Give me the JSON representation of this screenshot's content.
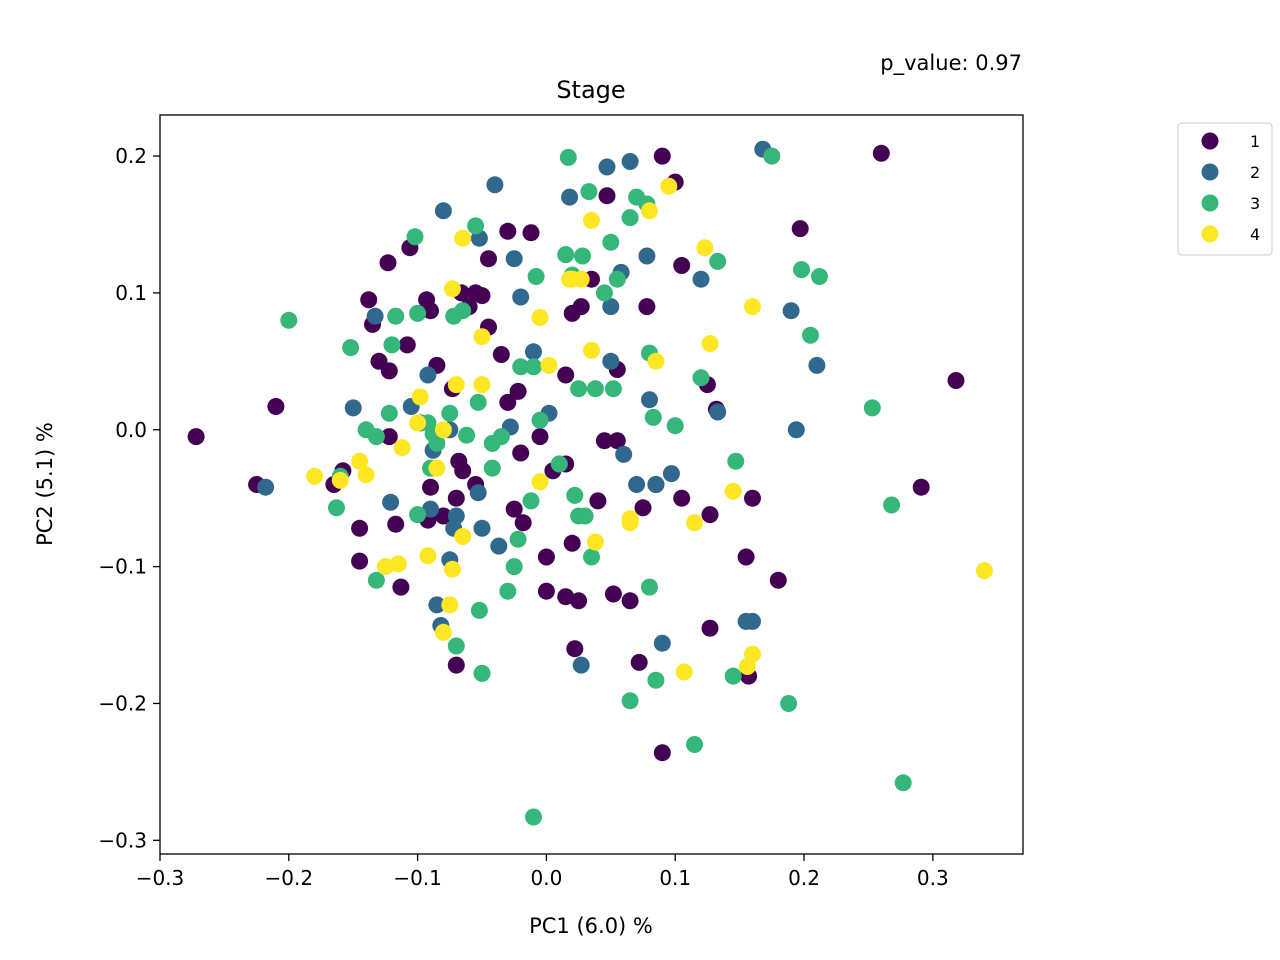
{
  "chart_data": {
    "type": "scatter",
    "title": "Stage",
    "annotation": "p_value: 0.97",
    "xlabel": "PC1 (6.0) %",
    "ylabel": "PC2 (5.1) %",
    "xlim": [
      -0.3,
      0.37
    ],
    "ylim": [
      -0.31,
      0.23
    ],
    "xticks": [
      -0.3,
      -0.2,
      -0.1,
      0.0,
      0.1,
      0.2,
      0.3
    ],
    "xtick_labels": [
      "−0.3",
      "−0.2",
      "−0.1",
      "0.0",
      "0.1",
      "0.2",
      "0.3"
    ],
    "yticks": [
      0.2,
      0.1,
      0.0,
      -0.1,
      -0.2,
      -0.3
    ],
    "ytick_labels": [
      "0.2",
      "0.1",
      "0.0",
      "−0.1",
      "−0.2",
      "−0.3"
    ],
    "grid": false,
    "legend_position": "outside-top-right",
    "series": [
      {
        "name": "1",
        "color": "#440154",
        "points": [
          [
            -0.272,
            -0.005
          ],
          [
            -0.225,
            -0.04
          ],
          [
            -0.21,
            0.017
          ],
          [
            -0.165,
            -0.04
          ],
          [
            -0.158,
            -0.03
          ],
          [
            -0.145,
            -0.072
          ],
          [
            -0.145,
            -0.096
          ],
          [
            -0.138,
            0.095
          ],
          [
            -0.135,
            0.077
          ],
          [
            -0.13,
            0.05
          ],
          [
            -0.123,
            0.122
          ],
          [
            -0.122,
            0.043
          ],
          [
            -0.122,
            -0.005
          ],
          [
            -0.117,
            -0.069
          ],
          [
            -0.113,
            -0.115
          ],
          [
            -0.108,
            0.062
          ],
          [
            -0.106,
            0.133
          ],
          [
            -0.093,
            0.095
          ],
          [
            -0.09,
            0.087
          ],
          [
            -0.09,
            -0.042
          ],
          [
            -0.092,
            -0.066
          ],
          [
            -0.085,
            0.047
          ],
          [
            -0.08,
            -0.063
          ],
          [
            -0.073,
            0.03
          ],
          [
            -0.07,
            -0.05
          ],
          [
            -0.07,
            -0.172
          ],
          [
            -0.066,
            0.1
          ],
          [
            -0.068,
            -0.023
          ],
          [
            -0.06,
            0.09
          ],
          [
            -0.065,
            -0.03
          ],
          [
            -0.055,
            0.1
          ],
          [
            -0.05,
            0.098
          ],
          [
            -0.045,
            0.125
          ],
          [
            -0.045,
            0.075
          ],
          [
            -0.035,
            0.055
          ],
          [
            -0.03,
            0.02
          ],
          [
            -0.03,
            0.145
          ],
          [
            -0.025,
            -0.058
          ],
          [
            -0.022,
            0.028
          ],
          [
            -0.02,
            -0.017
          ],
          [
            -0.018,
            -0.068
          ],
          [
            -0.012,
            0.144
          ],
          [
            -0.005,
            -0.005
          ],
          [
            0.0,
            -0.093
          ],
          [
            0.0,
            -0.118
          ],
          [
            0.015,
            -0.122
          ],
          [
            0.015,
            0.04
          ],
          [
            0.015,
            -0.025
          ],
          [
            0.02,
            0.085
          ],
          [
            0.02,
            -0.083
          ],
          [
            0.022,
            -0.16
          ],
          [
            0.025,
            -0.125
          ],
          [
            0.027,
            0.09
          ],
          [
            0.035,
            0.11
          ],
          [
            0.04,
            -0.052
          ],
          [
            0.045,
            -0.008
          ],
          [
            0.047,
            0.171
          ],
          [
            0.052,
            -0.12
          ],
          [
            0.055,
            0.044
          ],
          [
            0.055,
            -0.008
          ],
          [
            0.065,
            -0.125
          ],
          [
            0.072,
            -0.17
          ],
          [
            0.075,
            -0.057
          ],
          [
            0.078,
            0.09
          ],
          [
            0.085,
            -0.04
          ],
          [
            0.09,
            0.2
          ],
          [
            0.09,
            -0.236
          ],
          [
            0.1,
            0.181
          ],
          [
            0.105,
            -0.05
          ],
          [
            0.105,
            0.12
          ],
          [
            0.125,
            0.033
          ],
          [
            0.127,
            -0.145
          ],
          [
            0.127,
            -0.062
          ],
          [
            0.132,
            0.015
          ],
          [
            0.155,
            -0.093
          ],
          [
            0.157,
            -0.18
          ],
          [
            0.16,
            -0.05
          ],
          [
            0.18,
            -0.11
          ],
          [
            0.197,
            0.147
          ],
          [
            0.26,
            0.202
          ],
          [
            0.291,
            -0.042
          ],
          [
            0.318,
            0.036
          ],
          [
            -0.055,
            -0.04
          ],
          [
            0.005,
            -0.03
          ]
        ]
      },
      {
        "name": "2",
        "color": "#31688e",
        "points": [
          [
            -0.218,
            -0.042
          ],
          [
            -0.15,
            0.016
          ],
          [
            -0.133,
            0.083
          ],
          [
            -0.121,
            -0.053
          ],
          [
            -0.105,
            0.017
          ],
          [
            -0.098,
            0.005
          ],
          [
            -0.092,
            0.04
          ],
          [
            -0.088,
            -0.015
          ],
          [
            -0.085,
            -0.128
          ],
          [
            -0.082,
            -0.143
          ],
          [
            -0.08,
            0.16
          ],
          [
            -0.072,
            -0.072
          ],
          [
            -0.07,
            -0.063
          ],
          [
            -0.075,
            -0.095
          ],
          [
            -0.052,
            0.14
          ],
          [
            -0.053,
            -0.046
          ],
          [
            -0.05,
            -0.072
          ],
          [
            -0.04,
            0.179
          ],
          [
            -0.037,
            -0.085
          ],
          [
            -0.028,
            0.002
          ],
          [
            -0.02,
            0.097
          ],
          [
            -0.01,
            0.057
          ],
          [
            0.01,
            -0.025
          ],
          [
            0.018,
            0.17
          ],
          [
            0.027,
            -0.172
          ],
          [
            0.05,
            0.05
          ],
          [
            0.047,
            0.192
          ],
          [
            0.058,
            0.115
          ],
          [
            0.05,
            0.09
          ],
          [
            0.06,
            -0.018
          ],
          [
            0.065,
            0.196
          ],
          [
            0.07,
            -0.04
          ],
          [
            0.078,
            0.127
          ],
          [
            0.08,
            0.022
          ],
          [
            0.085,
            -0.04
          ],
          [
            0.09,
            -0.156
          ],
          [
            0.097,
            -0.032
          ],
          [
            0.12,
            0.11
          ],
          [
            0.133,
            0.013
          ],
          [
            0.155,
            -0.14
          ],
          [
            0.16,
            -0.14
          ],
          [
            0.168,
            0.205
          ],
          [
            0.19,
            0.087
          ],
          [
            0.194,
            0.0
          ],
          [
            0.21,
            0.047
          ],
          [
            -0.075,
            0.0
          ],
          [
            -0.09,
            -0.058
          ],
          [
            0.002,
            0.012
          ],
          [
            -0.025,
            0.125
          ]
        ]
      },
      {
        "name": "3",
        "color": "#35b779",
        "points": [
          [
            -0.2,
            0.08
          ],
          [
            -0.16,
            -0.034
          ],
          [
            -0.163,
            -0.057
          ],
          [
            -0.152,
            0.06
          ],
          [
            -0.14,
            0.0
          ],
          [
            -0.132,
            -0.005
          ],
          [
            -0.132,
            -0.11
          ],
          [
            -0.122,
            0.012
          ],
          [
            -0.117,
            0.083
          ],
          [
            -0.12,
            0.062
          ],
          [
            -0.102,
            0.141
          ],
          [
            -0.1,
            0.085
          ],
          [
            -0.1,
            -0.062
          ],
          [
            -0.092,
            0.005
          ],
          [
            -0.09,
            -0.028
          ],
          [
            -0.088,
            -0.003
          ],
          [
            -0.075,
            0.012
          ],
          [
            -0.072,
            0.083
          ],
          [
            -0.065,
            0.087
          ],
          [
            -0.062,
            -0.004
          ],
          [
            -0.07,
            -0.158
          ],
          [
            -0.055,
            0.149
          ],
          [
            -0.053,
            0.02
          ],
          [
            -0.052,
            -0.132
          ],
          [
            -0.042,
            -0.028
          ],
          [
            -0.042,
            -0.01
          ],
          [
            -0.035,
            -0.005
          ],
          [
            -0.05,
            -0.178
          ],
          [
            -0.03,
            -0.118
          ],
          [
            -0.025,
            -0.1
          ],
          [
            -0.022,
            -0.08
          ],
          [
            -0.02,
            0.046
          ],
          [
            -0.012,
            -0.052
          ],
          [
            -0.01,
            0.046
          ],
          [
            -0.008,
            0.112
          ],
          [
            -0.005,
            0.007
          ],
          [
            0.01,
            -0.025
          ],
          [
            0.015,
            0.128
          ],
          [
            0.017,
            0.199
          ],
          [
            0.02,
            0.113
          ],
          [
            0.022,
            -0.048
          ],
          [
            0.025,
            0.03
          ],
          [
            0.025,
            -0.063
          ],
          [
            0.028,
            0.127
          ],
          [
            0.03,
            -0.063
          ],
          [
            0.033,
            0.174
          ],
          [
            0.035,
            -0.093
          ],
          [
            0.038,
            0.03
          ],
          [
            0.045,
            0.1
          ],
          [
            0.05,
            0.137
          ],
          [
            0.052,
            0.03
          ],
          [
            0.055,
            0.11
          ],
          [
            0.065,
            0.155
          ],
          [
            0.07,
            0.17
          ],
          [
            0.078,
            0.165
          ],
          [
            0.08,
            0.056
          ],
          [
            0.08,
            -0.115
          ],
          [
            0.083,
            0.009
          ],
          [
            0.085,
            -0.183
          ],
          [
            0.1,
            0.003
          ],
          [
            0.115,
            -0.23
          ],
          [
            0.12,
            0.038
          ],
          [
            0.133,
            0.123
          ],
          [
            0.145,
            -0.18
          ],
          [
            0.147,
            -0.023
          ],
          [
            0.175,
            0.2
          ],
          [
            0.188,
            -0.2
          ],
          [
            0.198,
            0.117
          ],
          [
            0.205,
            0.069
          ],
          [
            0.212,
            0.112
          ],
          [
            0.253,
            0.016
          ],
          [
            0.268,
            -0.055
          ],
          [
            0.277,
            -0.258
          ],
          [
            0.065,
            -0.198
          ],
          [
            -0.01,
            -0.283
          ],
          [
            -0.085,
            -0.01
          ]
        ]
      },
      {
        "name": "4",
        "color": "#fde725",
        "points": [
          [
            -0.18,
            -0.034
          ],
          [
            -0.16,
            -0.037
          ],
          [
            -0.145,
            -0.023
          ],
          [
            -0.14,
            -0.033
          ],
          [
            -0.125,
            -0.1
          ],
          [
            -0.115,
            -0.098
          ],
          [
            -0.112,
            -0.013
          ],
          [
            -0.1,
            0.005
          ],
          [
            -0.098,
            0.024
          ],
          [
            -0.092,
            -0.092
          ],
          [
            -0.085,
            -0.028
          ],
          [
            -0.08,
            0.0
          ],
          [
            -0.08,
            -0.148
          ],
          [
            -0.075,
            -0.128
          ],
          [
            -0.073,
            0.103
          ],
          [
            -0.073,
            -0.102
          ],
          [
            -0.07,
            0.033
          ],
          [
            -0.065,
            0.14
          ],
          [
            -0.065,
            -0.078
          ],
          [
            -0.05,
            0.068
          ],
          [
            -0.05,
            0.033
          ],
          [
            -0.005,
            0.082
          ],
          [
            0.002,
            0.047
          ],
          [
            0.018,
            0.11
          ],
          [
            0.02,
            0.11
          ],
          [
            0.027,
            0.11
          ],
          [
            0.035,
            0.153
          ],
          [
            0.035,
            0.058
          ],
          [
            0.038,
            -0.082
          ],
          [
            0.065,
            -0.065
          ],
          [
            0.065,
            -0.068
          ],
          [
            0.08,
            0.16
          ],
          [
            0.085,
            0.05
          ],
          [
            0.095,
            0.178
          ],
          [
            0.107,
            -0.177
          ],
          [
            0.115,
            -0.068
          ],
          [
            0.123,
            0.133
          ],
          [
            0.127,
            0.063
          ],
          [
            0.145,
            -0.045
          ],
          [
            0.156,
            -0.173
          ],
          [
            0.16,
            0.09
          ],
          [
            0.16,
            -0.164
          ],
          [
            0.34,
            -0.103
          ],
          [
            -0.005,
            -0.038
          ]
        ]
      }
    ]
  }
}
